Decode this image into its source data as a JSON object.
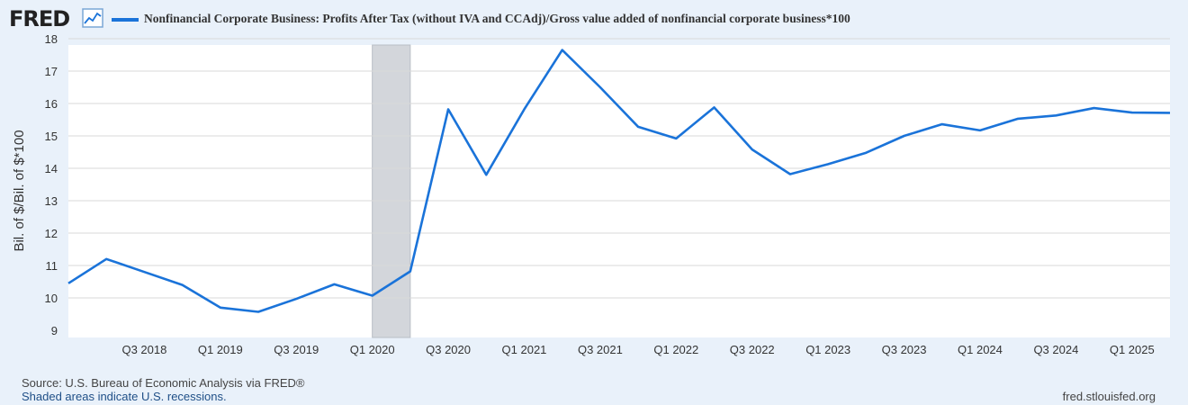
{
  "header": {
    "logo_text": "FRED",
    "logo_icon": "line-chart-icon",
    "legend_label": "Nonfinancial Corporate Business: Profits After Tax (without IVA and CCAdj)/Gross value added of nonfinancial corporate business*100"
  },
  "footer": {
    "source": "Source: U.S. Bureau of Economic Analysis via FRED®",
    "recession_note": "Shaded areas indicate U.S. recessions.",
    "url": "fred.stlouisfed.org"
  },
  "colors": {
    "line": "#1a73d9",
    "plot_background": "#ffffff",
    "page_background": "#e9f1fa",
    "grid": "#d9d9d9",
    "recession": "#d3d6db"
  },
  "chart_data": {
    "type": "line",
    "title": "",
    "xlabel": "",
    "ylabel": "Bil. of $/Bil. of $*100",
    "ylim": [
      9,
      18
    ],
    "yticks": [
      9,
      10,
      11,
      12,
      13,
      14,
      15,
      16,
      17,
      18
    ],
    "grid": true,
    "legend_position": "top-left",
    "x_tick_labels": [
      "Q3 2018",
      "Q1 2019",
      "Q3 2019",
      "Q1 2020",
      "Q3 2020",
      "Q1 2021",
      "Q3 2021",
      "Q1 2022",
      "Q3 2022",
      "Q1 2023",
      "Q3 2023",
      "Q1 2024",
      "Q3 2024",
      "Q1 2025"
    ],
    "x_tick_positions": [
      "2018-07",
      "2019-01",
      "2019-07",
      "2020-01",
      "2020-07",
      "2021-01",
      "2021-07",
      "2022-01",
      "2022-07",
      "2023-01",
      "2023-07",
      "2024-01",
      "2024-07",
      "2025-01"
    ],
    "x_start": "2018-01",
    "x_end": "2025-04",
    "recessions": [
      {
        "start": "2020-01",
        "end": "2020-04"
      }
    ],
    "series": [
      {
        "x": [
          "2018-01",
          "2018-04",
          "2018-07",
          "2018-10",
          "2019-01",
          "2019-04",
          "2019-07",
          "2019-10",
          "2020-01",
          "2020-04",
          "2020-07",
          "2020-10",
          "2021-01",
          "2021-04",
          "2021-07",
          "2021-10",
          "2022-01",
          "2022-04",
          "2022-07",
          "2022-10",
          "2023-01",
          "2023-04",
          "2023-07",
          "2023-10",
          "2024-01",
          "2024-04",
          "2024-07",
          "2024-10",
          "2025-01",
          "2025-04"
        ],
        "values": [
          10.45,
          11.2,
          10.8,
          10.4,
          9.7,
          9.57,
          9.97,
          10.42,
          10.07,
          10.82,
          15.82,
          13.8,
          15.82,
          17.65,
          16.5,
          15.28,
          14.92,
          15.88,
          14.58,
          13.82,
          14.13,
          14.48,
          15.0,
          15.36,
          15.17,
          15.53,
          15.63,
          15.86,
          15.72,
          15.71
        ]
      }
    ]
  }
}
